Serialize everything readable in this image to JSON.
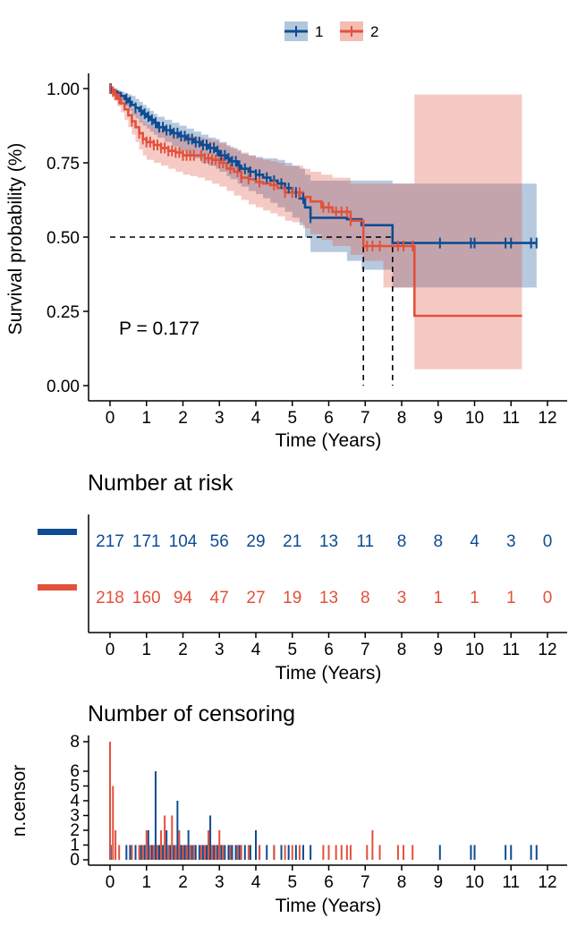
{
  "colors": {
    "group1": "#0E4C92",
    "group2": "#E2513C",
    "ci1": "#B3C7DC",
    "ci2": "#F3BDB4"
  },
  "legend": {
    "items": [
      {
        "label": "1"
      },
      {
        "label": "2"
      }
    ]
  },
  "km_plot": {
    "ylabel": "Survival probability (%)",
    "xlabel": "Time (Years)",
    "pvalue": "P = 0.177"
  },
  "risk_table": {
    "title": "Number at risk",
    "xlabel": "Time (Years)",
    "group1": [
      "217",
      "171",
      "104",
      "56",
      "29",
      "21",
      "13",
      "11",
      "8",
      "8",
      "4",
      "3",
      "0"
    ],
    "group2": [
      "218",
      "160",
      "94",
      "47",
      "27",
      "19",
      "13",
      "8",
      "3",
      "1",
      "1",
      "1",
      "0"
    ]
  },
  "censor_plot": {
    "title": "Number of censoring",
    "ylabel": "n.censor",
    "xlabel": "Time (Years)"
  },
  "chart_data": [
    {
      "type": "line",
      "title": "",
      "xlabel": "Time (Years)",
      "ylabel": "Survival probability (%)",
      "xlim": [
        0,
        12
      ],
      "ylim": [
        0,
        1
      ],
      "xticks": [
        "0",
        "1",
        "2",
        "3",
        "4",
        "5",
        "6",
        "7",
        "8",
        "9",
        "10",
        "11",
        "12"
      ],
      "yticks": [
        "0.00",
        "0.25",
        "0.50",
        "0.75",
        "1.00"
      ],
      "legend": [
        "1",
        "2"
      ],
      "median_reference": {
        "y": 0.5,
        "median_group2_years": 6.95,
        "median_group1_years": 7.75
      },
      "series": [
        {
          "name": "1",
          "x": [
            0,
            0.05,
            0.1,
            0.2,
            0.3,
            0.4,
            0.5,
            0.6,
            0.7,
            0.8,
            0.9,
            1.0,
            1.1,
            1.2,
            1.3,
            1.5,
            1.7,
            1.9,
            2.1,
            2.3,
            2.5,
            2.7,
            2.9,
            3.0,
            3.2,
            3.3,
            3.5,
            3.6,
            3.8,
            4.0,
            4.2,
            4.4,
            4.6,
            4.8,
            5.0,
            5.2,
            5.35,
            5.5,
            6.5,
            6.9,
            7.75,
            11.7
          ],
          "y": [
            1.0,
            0.995,
            0.99,
            0.985,
            0.975,
            0.965,
            0.955,
            0.945,
            0.935,
            0.925,
            0.915,
            0.905,
            0.895,
            0.885,
            0.87,
            0.86,
            0.85,
            0.84,
            0.83,
            0.82,
            0.81,
            0.8,
            0.79,
            0.775,
            0.765,
            0.755,
            0.74,
            0.73,
            0.72,
            0.71,
            0.7,
            0.69,
            0.68,
            0.665,
            0.65,
            0.63,
            0.6,
            0.565,
            0.56,
            0.54,
            0.48,
            0.48
          ],
          "ci_upper": [
            1.0,
            1.0,
            1.0,
            0.995,
            0.99,
            0.985,
            0.98,
            0.975,
            0.965,
            0.955,
            0.945,
            0.935,
            0.925,
            0.915,
            0.905,
            0.895,
            0.885,
            0.875,
            0.865,
            0.855,
            0.845,
            0.835,
            0.83,
            0.82,
            0.81,
            0.8,
            0.79,
            0.78,
            0.775,
            0.77,
            0.765,
            0.765,
            0.76,
            0.75,
            0.74,
            0.73,
            0.71,
            0.69,
            0.69,
            0.69,
            0.68,
            0.68
          ],
          "ci_lower": [
            1.0,
            0.99,
            0.975,
            0.965,
            0.955,
            0.94,
            0.925,
            0.91,
            0.9,
            0.885,
            0.875,
            0.865,
            0.855,
            0.845,
            0.835,
            0.82,
            0.805,
            0.79,
            0.775,
            0.765,
            0.75,
            0.74,
            0.73,
            0.72,
            0.705,
            0.695,
            0.68,
            0.67,
            0.655,
            0.645,
            0.63,
            0.615,
            0.6,
            0.585,
            0.565,
            0.54,
            0.5,
            0.45,
            0.42,
            0.39,
            0.33,
            0.33
          ]
        },
        {
          "name": "2",
          "x": [
            0,
            0.05,
            0.1,
            0.2,
            0.3,
            0.4,
            0.5,
            0.6,
            0.7,
            0.8,
            0.9,
            1.0,
            1.2,
            1.4,
            1.6,
            1.8,
            2.0,
            2.2,
            2.4,
            2.6,
            2.8,
            3.0,
            3.2,
            3.4,
            3.6,
            3.8,
            4.0,
            4.2,
            4.4,
            4.6,
            4.8,
            5.0,
            5.3,
            5.5,
            5.8,
            6.1,
            6.6,
            6.95,
            7.5,
            8.35,
            11.3
          ],
          "y": [
            1.0,
            0.99,
            0.98,
            0.965,
            0.95,
            0.93,
            0.91,
            0.89,
            0.87,
            0.85,
            0.83,
            0.82,
            0.81,
            0.8,
            0.79,
            0.785,
            0.775,
            0.775,
            0.775,
            0.765,
            0.76,
            0.75,
            0.73,
            0.72,
            0.7,
            0.695,
            0.685,
            0.68,
            0.675,
            0.665,
            0.65,
            0.65,
            0.635,
            0.62,
            0.6,
            0.585,
            0.555,
            0.47,
            0.47,
            0.235,
            0.235
          ],
          "ci_upper": [
            1.0,
            1.0,
            1.0,
            0.99,
            0.98,
            0.965,
            0.95,
            0.935,
            0.92,
            0.905,
            0.89,
            0.88,
            0.87,
            0.86,
            0.855,
            0.85,
            0.845,
            0.84,
            0.835,
            0.83,
            0.825,
            0.815,
            0.805,
            0.795,
            0.785,
            0.775,
            0.765,
            0.76,
            0.755,
            0.75,
            0.74,
            0.74,
            0.73,
            0.72,
            0.71,
            0.7,
            0.68,
            0.68,
            0.68,
            0.98,
            0.98
          ],
          "ci_lower": [
            1.0,
            0.98,
            0.96,
            0.94,
            0.92,
            0.895,
            0.87,
            0.845,
            0.82,
            0.795,
            0.775,
            0.76,
            0.75,
            0.74,
            0.73,
            0.72,
            0.71,
            0.705,
            0.7,
            0.69,
            0.68,
            0.67,
            0.655,
            0.64,
            0.625,
            0.61,
            0.6,
            0.59,
            0.58,
            0.57,
            0.555,
            0.55,
            0.53,
            0.51,
            0.49,
            0.47,
            0.44,
            0.42,
            0.33,
            0.055,
            0.055
          ]
        }
      ]
    },
    {
      "type": "bar",
      "title": "Number of censoring",
      "xlabel": "Time (Years)",
      "ylabel": "n.censor",
      "xlim": [
        0,
        12
      ],
      "ylim": [
        0,
        8
      ],
      "xticks": [
        "0",
        "1",
        "2",
        "3",
        "4",
        "5",
        "6",
        "7",
        "8",
        "9",
        "10",
        "11",
        "12"
      ],
      "yticks": [
        "0",
        "1",
        "2",
        "3",
        "4",
        "5",
        "6",
        "8"
      ],
      "series": [
        {
          "name": "1",
          "x": [
            0.02,
            0.45,
            0.55,
            0.7,
            0.85,
            0.95,
            1.05,
            1.15,
            1.25,
            1.35,
            1.45,
            1.55,
            1.65,
            1.75,
            1.85,
            1.95,
            2.05,
            2.15,
            2.25,
            2.35,
            2.45,
            2.55,
            2.65,
            2.75,
            2.85,
            2.95,
            3.05,
            3.15,
            3.25,
            3.35,
            3.45,
            3.55,
            3.7,
            3.85,
            4.0,
            4.1,
            4.3,
            4.5,
            4.7,
            4.9,
            5.1,
            5.3,
            5.5,
            9.05,
            9.9,
            10.0,
            10.85,
            11.0,
            11.55,
            11.7
          ],
          "values": [
            1,
            1,
            1,
            1,
            1,
            1,
            2,
            1,
            6,
            1,
            1,
            2,
            1,
            1,
            4,
            1,
            1,
            2,
            1,
            1,
            1,
            1,
            1,
            3,
            1,
            1,
            1,
            1,
            1,
            1,
            1,
            1,
            1,
            1,
            2,
            1,
            1,
            1,
            1,
            1,
            1,
            1,
            1,
            1,
            1,
            1,
            1,
            1,
            1,
            1
          ]
        },
        {
          "name": "2",
          "x": [
            0.0,
            0.08,
            0.15,
            0.25,
            0.6,
            0.8,
            0.9,
            1.0,
            1.1,
            1.2,
            1.3,
            1.4,
            1.5,
            1.6,
            1.7,
            1.8,
            1.9,
            2.0,
            2.1,
            2.2,
            2.3,
            2.5,
            2.6,
            2.7,
            2.8,
            2.9,
            3.0,
            3.1,
            3.3,
            3.5,
            3.6,
            3.8,
            4.1,
            4.5,
            4.8,
            5.0,
            5.2,
            5.85,
            6.0,
            6.2,
            6.35,
            6.5,
            6.6,
            7.05,
            7.2,
            7.4,
            7.9,
            8.05,
            8.3
          ],
          "values": [
            8,
            5,
            2,
            1,
            1,
            1,
            1,
            2,
            1,
            1,
            1,
            2,
            3,
            1,
            3,
            1,
            2,
            1,
            1,
            1,
            1,
            1,
            1,
            2,
            1,
            1,
            2,
            1,
            1,
            1,
            1,
            1,
            1,
            1,
            1,
            1,
            1,
            1,
            1,
            1,
            1,
            1,
            1,
            1,
            2,
            1,
            1,
            1,
            1
          ]
        }
      ]
    }
  ]
}
